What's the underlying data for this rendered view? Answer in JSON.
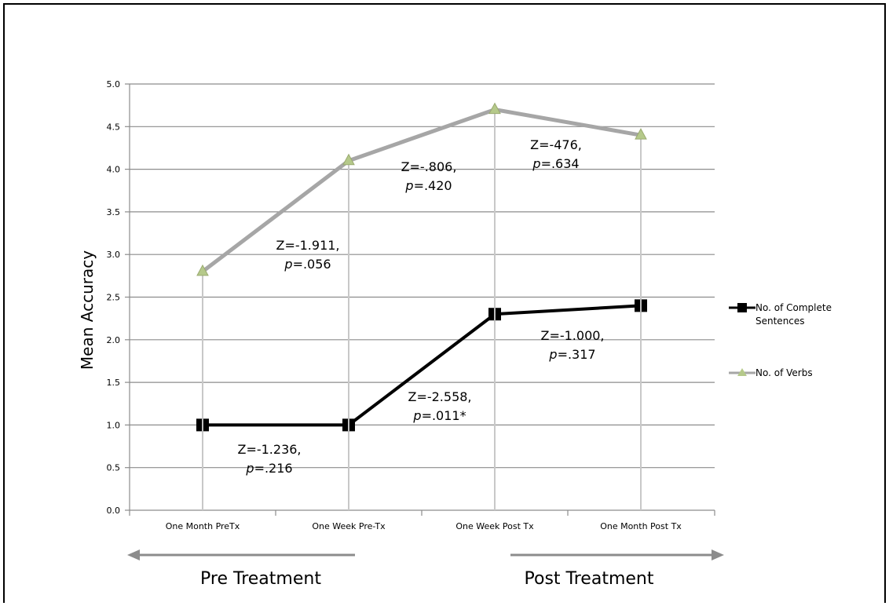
{
  "chart_data": {
    "type": "line",
    "title": "",
    "xlabel": "",
    "ylabel": "Mean  Accuracy",
    "ylim": [
      0,
      5
    ],
    "yticks": [
      "0.0",
      "0.5",
      "1.0",
      "1.5",
      "2.0",
      "2.5",
      "3.0",
      "3.5",
      "4.0",
      "4.5",
      "5.0"
    ],
    "grid": true,
    "legend_position": "right",
    "categories": [
      "One Month PreTx",
      "One Week  Pre-Tx",
      "One Week Post Tx",
      "One Month Post Tx"
    ],
    "series": [
      {
        "name": "No. of Complete Sentences",
        "values": [
          1.0,
          1.0,
          2.3,
          2.4
        ],
        "color": "#000000",
        "marker": "square"
      },
      {
        "name": "No. of Verbs",
        "values": [
          2.8,
          4.1,
          4.7,
          4.4
        ],
        "color": "#a6a6a6",
        "marker": "triangle"
      }
    ],
    "annotations": [
      {
        "series": "No. of Verbs",
        "between": [
          0,
          1
        ],
        "line1": "Z=-1.911,",
        "p_label": "p",
        "line2": "=.056"
      },
      {
        "series": "No. of Verbs",
        "between": [
          1,
          2
        ],
        "line1": "Z=-.806,",
        "p_label": "p",
        "line2": "=.420"
      },
      {
        "series": "No. of Verbs",
        "between": [
          2,
          3
        ],
        "line1": "Z=-476,",
        "p_label": "p",
        "line2": "=.634"
      },
      {
        "series": "No. of Complete Sentences",
        "between": [
          0,
          1
        ],
        "line1": "Z=-1.236,",
        "p_label": "p",
        "line2": "=.216"
      },
      {
        "series": "No. of Complete Sentences",
        "between": [
          1,
          2
        ],
        "line1": "Z=-2.558,",
        "p_label": "p",
        "line2": "=.011*"
      },
      {
        "series": "No. of Complete Sentences",
        "between": [
          2,
          3
        ],
        "line1": "Z=-1.000,",
        "p_label": "p",
        "line2": "=.317"
      }
    ],
    "phases": [
      {
        "label": "Pre Treatment",
        "arrow": "left"
      },
      {
        "label": "Post Treatment",
        "arrow": "right"
      }
    ]
  }
}
